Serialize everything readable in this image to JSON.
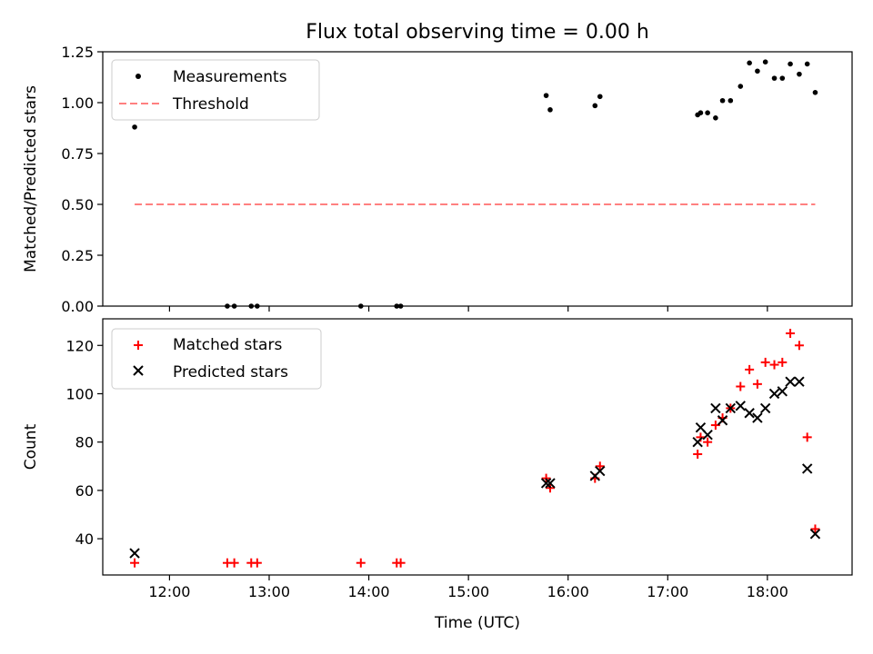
{
  "chart_data": [
    {
      "type": "scatter",
      "title": "Flux total observing time = 0.00 h",
      "xlabel": "",
      "ylabel": "Matched/Predicted stars",
      "xlim": [
        11.33,
        18.85
      ],
      "ylim": [
        0.0,
        1.25
      ],
      "yticks": [
        "0.00",
        "0.25",
        "0.50",
        "0.75",
        "1.00",
        "1.25"
      ],
      "legend_position": "top-left",
      "series": [
        {
          "name": "Measurements",
          "kind": "dot",
          "color": "#000000",
          "x": [
            11.65,
            12.58,
            12.65,
            12.82,
            12.88,
            13.92,
            14.28,
            14.32,
            15.78,
            15.82,
            16.27,
            16.32,
            17.3,
            17.33,
            17.4,
            17.48,
            17.55,
            17.63,
            17.73,
            17.82,
            17.9,
            17.98,
            18.07,
            18.15,
            18.23,
            18.32,
            18.4,
            18.48
          ],
          "y": [
            0.88,
            0.0,
            0.0,
            0.0,
            0.0,
            0.0,
            0.0,
            0.0,
            1.035,
            0.965,
            0.985,
            1.03,
            0.94,
            0.95,
            0.95,
            0.925,
            1.01,
            1.01,
            1.08,
            1.195,
            1.155,
            1.2,
            1.12,
            1.12,
            1.19,
            1.14,
            1.19,
            1.05
          ]
        },
        {
          "name": "Threshold",
          "kind": "dashed-line",
          "color": "#ff8080",
          "x": [
            11.65,
            18.48
          ],
          "y": [
            0.5,
            0.5
          ]
        }
      ]
    },
    {
      "type": "scatter",
      "title": "",
      "xlabel": "Time (UTC)",
      "ylabel": "Count",
      "xlim": [
        11.33,
        18.85
      ],
      "ylim": [
        25,
        131
      ],
      "yticks": [
        "40",
        "60",
        "80",
        "100",
        "120"
      ],
      "xticks": [
        "12:00",
        "13:00",
        "14:00",
        "15:00",
        "16:00",
        "17:00",
        "18:00"
      ],
      "legend_position": "top-left",
      "series": [
        {
          "name": "Matched stars",
          "kind": "plus",
          "color": "#ff0000",
          "x": [
            11.65,
            12.58,
            12.65,
            12.82,
            12.88,
            13.92,
            14.28,
            14.32,
            15.78,
            15.82,
            16.27,
            16.32,
            17.3,
            17.33,
            17.4,
            17.48,
            17.55,
            17.63,
            17.73,
            17.82,
            17.9,
            17.98,
            18.07,
            18.15,
            18.23,
            18.32,
            18.4,
            18.48
          ],
          "y": [
            30,
            30,
            30,
            30,
            30,
            30,
            30,
            30,
            65,
            61,
            65,
            70,
            75,
            82,
            80,
            87,
            90,
            94,
            103,
            110,
            104,
            113,
            112,
            113,
            125,
            120,
            82,
            44
          ]
        },
        {
          "name": "Predicted stars",
          "kind": "x",
          "color": "#000000",
          "x": [
            11.65,
            15.78,
            15.82,
            16.27,
            16.32,
            17.3,
            17.33,
            17.4,
            17.48,
            17.55,
            17.63,
            17.73,
            17.82,
            17.9,
            17.98,
            18.07,
            18.15,
            18.23,
            18.32,
            18.4,
            18.48
          ],
          "y": [
            34,
            63,
            63,
            66,
            68,
            80,
            86,
            83,
            94,
            89,
            94,
            95,
            92,
            90,
            94,
            100,
            101,
            105,
            105,
            69,
            42
          ]
        }
      ]
    }
  ]
}
